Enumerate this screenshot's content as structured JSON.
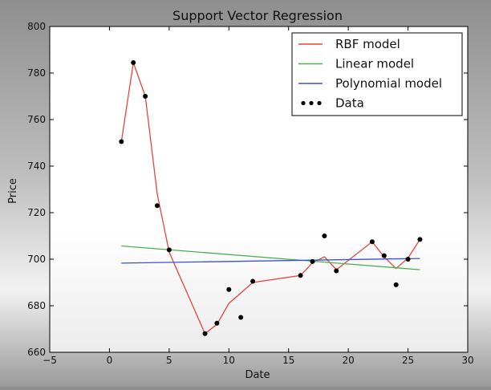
{
  "chart_data": {
    "type": "line",
    "title": "Support Vector Regression",
    "xlabel": "Date",
    "ylabel": "Price",
    "xlim": [
      -5,
      30
    ],
    "ylim": [
      660,
      800
    ],
    "xticks": [
      -5,
      0,
      5,
      10,
      15,
      20,
      25,
      30
    ],
    "yticks": [
      660,
      680,
      700,
      720,
      740,
      760,
      780,
      800
    ],
    "xtick_labels": [
      "−5",
      "0",
      "5",
      "10",
      "15",
      "20",
      "25",
      "30"
    ],
    "ytick_labels": [
      "660",
      "680",
      "700",
      "720",
      "740",
      "760",
      "780",
      "800"
    ],
    "grid": false,
    "legend_position": "top-right",
    "series": [
      {
        "name": "RBF model",
        "kind": "line",
        "color": "#e8453c",
        "x": [
          1,
          2,
          3,
          4,
          5,
          8,
          9,
          10,
          12,
          16,
          17,
          18,
          19,
          22,
          23,
          24,
          25,
          26
        ],
        "y": [
          750.5,
          784.5,
          770,
          728,
          703,
          668,
          672,
          681,
          690,
          693,
          698.5,
          701,
          695.5,
          707.5,
          701,
          696,
          700.5,
          708.5
        ]
      },
      {
        "name": "Linear model",
        "kind": "line",
        "color": "#4caf50",
        "x": [
          1,
          26
        ],
        "y": [
          705.7,
          695.5
        ]
      },
      {
        "name": "Polynomial model",
        "kind": "line",
        "color": "#3f51d8",
        "x": [
          1,
          26
        ],
        "y": [
          698.3,
          700.3
        ]
      },
      {
        "name": "Data",
        "kind": "scatter",
        "color": "#000000",
        "x": [
          1,
          2,
          3,
          4,
          5,
          8,
          9,
          10,
          11,
          12,
          16,
          17,
          18,
          19,
          22,
          23,
          24,
          25,
          26
        ],
        "y": [
          750.5,
          784.5,
          770,
          723,
          704,
          668,
          672.5,
          687,
          675,
          690.5,
          693,
          699,
          710,
          695,
          707.5,
          701.5,
          689,
          700,
          708.5
        ]
      }
    ]
  }
}
